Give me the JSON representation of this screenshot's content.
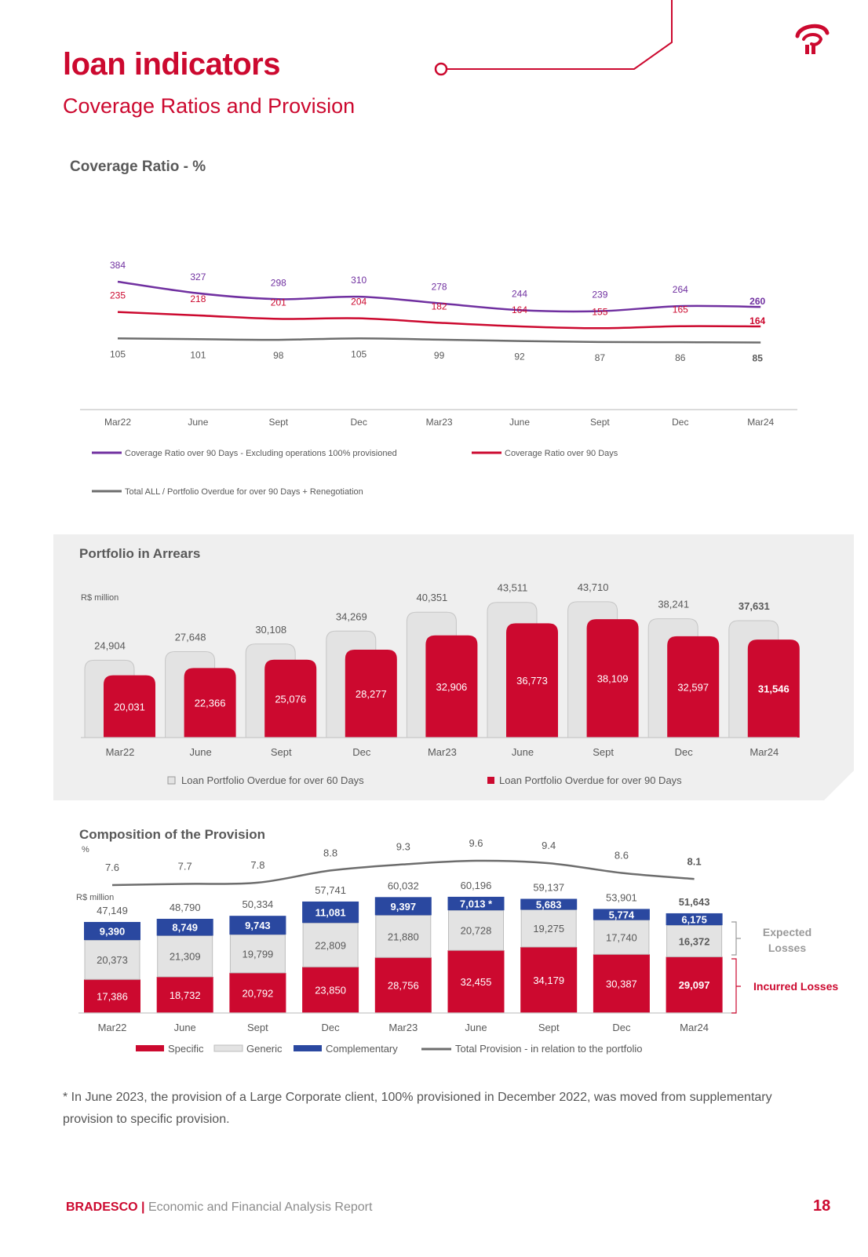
{
  "header": {
    "title": "loan indicators",
    "subtitle": "Coverage Ratios and Provision"
  },
  "colors": {
    "brand_red": "#cc092f",
    "purple": "#7030a0",
    "gray_line": "#6d6d6d",
    "generic_gray": "#e3e3e3",
    "complementary_blue": "#2a48a0"
  },
  "chart_data": [
    {
      "type": "line",
      "title": "Coverage Ratio - %",
      "categories": [
        "Mar22",
        "June",
        "Sept",
        "Dec",
        "Mar23",
        "June",
        "Sept",
        "Dec",
        "Mar24"
      ],
      "series": [
        {
          "name": "Coverage Ratio over 90 Days - Excluding operations 100% provisioned",
          "color": "#7030a0",
          "values": [
            384,
            327,
            298,
            310,
            278,
            244,
            239,
            264,
            260
          ]
        },
        {
          "name": "Coverage Ratio over 90 Days",
          "color": "#cc092f",
          "values": [
            235,
            218,
            201,
            204,
            182,
            164,
            155,
            165,
            164
          ]
        },
        {
          "name": "Total ALL / Portfolio Overdue for over 90 Days + Renegotiation",
          "color": "#6d6d6d",
          "values": [
            105,
            101,
            98,
            105,
            99,
            92,
            87,
            86,
            85
          ]
        }
      ]
    },
    {
      "type": "bar",
      "title": "Portfolio in Arrears",
      "unit": "R$ million",
      "categories": [
        "Mar22",
        "June",
        "Sept",
        "Dec",
        "Mar23",
        "June",
        "Sept",
        "Dec",
        "Mar24"
      ],
      "series": [
        {
          "name": "Loan Portfolio Overdue for over 60 Days",
          "color": "#e3e3e3",
          "values": [
            24904,
            27648,
            30108,
            34269,
            40351,
            43511,
            43710,
            38241,
            37631
          ],
          "labels": [
            "24,904",
            "27,648",
            "30,108",
            "34,269",
            "40,351",
            "43,511",
            "43,710",
            "38,241",
            "37,631"
          ]
        },
        {
          "name": "Loan Portfolio Overdue for over 90 Days",
          "color": "#cc092f",
          "values": [
            20031,
            22366,
            25076,
            28277,
            32906,
            36773,
            38109,
            32597,
            31546
          ],
          "labels": [
            "20,031",
            "22,366",
            "25,076",
            "28,277",
            "32,906",
            "36,773",
            "38,109",
            "32,597",
            "31,546"
          ]
        }
      ]
    },
    {
      "type": "bar",
      "stacked": true,
      "title": "Composition of the Provision",
      "unit": "R$ million",
      "line_unit": "%",
      "categories": [
        "Mar22",
        "June",
        "Sept",
        "Dec",
        "Mar23",
        "June",
        "Sept",
        "Dec",
        "Mar24"
      ],
      "totals": [
        "47,149",
        "48,790",
        "50,334",
        "57,741",
        "60,032",
        "60,196",
        "59,137",
        "53,901",
        "51,643"
      ],
      "series": [
        {
          "name": "Specific",
          "color": "#cc092f",
          "values": [
            17386,
            18732,
            20792,
            23850,
            28756,
            32455,
            34179,
            30387,
            29097
          ],
          "labels": [
            "17,386",
            "18,732",
            "20,792",
            "23,850",
            "28,756",
            "32,455",
            "34,179",
            "30,387",
            "29,097"
          ]
        },
        {
          "name": "Generic",
          "color": "#e3e3e3",
          "values": [
            20373,
            21309,
            19799,
            22809,
            21880,
            20728,
            19275,
            17740,
            16372
          ],
          "labels": [
            "20,373",
            "21,309",
            "19,799",
            "22,809",
            "21,880",
            "20,728",
            "19,275",
            "17,740",
            "16,372"
          ]
        },
        {
          "name": "Complementary",
          "color": "#2a48a0",
          "values": [
            9390,
            8749,
            9743,
            11081,
            9397,
            7013,
            5683,
            5774,
            6175
          ],
          "labels": [
            "9,390",
            "8,749",
            "9,743",
            "11,081",
            "9,397",
            "7,013 *",
            "5,683",
            "5,774",
            "6,175"
          ]
        }
      ],
      "line": {
        "name": "Total Provision - in relation to the portfolio",
        "values": [
          7.6,
          7.7,
          7.8,
          8.8,
          9.3,
          9.6,
          9.4,
          8.6,
          8.1
        ],
        "labels": [
          "7.6",
          "7.7",
          "7.8",
          "8.8",
          "9.3",
          "9.6",
          "9.4",
          "8.6",
          "8.1"
        ]
      },
      "annotations": {
        "expected_losses": "Expected Losses",
        "incurred_losses": "Incurred Losses"
      }
    }
  ],
  "footnote": "* In June 2023, the provision of a Large Corporate client, 100% provisioned in December 2022, was moved from supplementary provision to specific provision.",
  "footer": {
    "brand": "BRADESCO",
    "separator": "|",
    "report": "Economic and Financial Analysis Report",
    "page_number": "18"
  }
}
